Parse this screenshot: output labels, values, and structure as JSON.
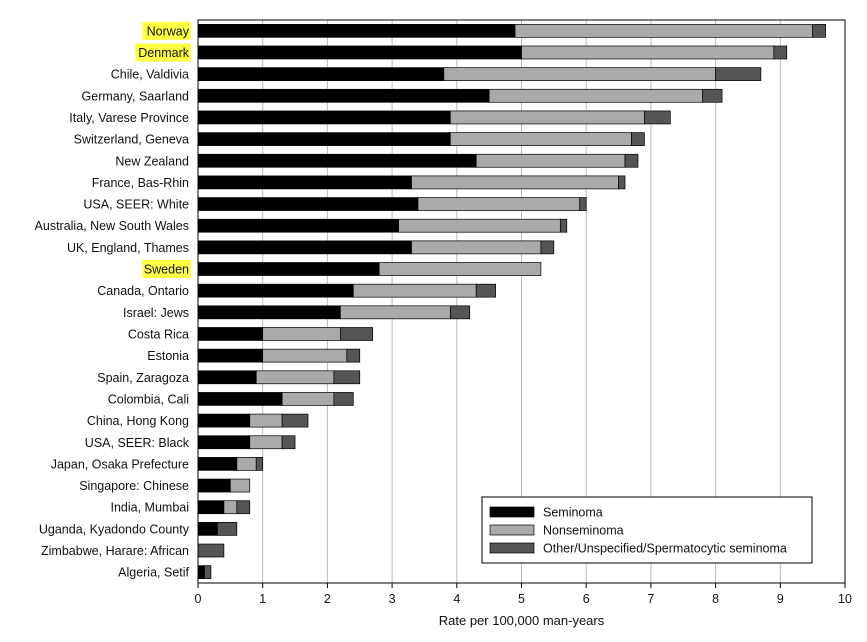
{
  "chart_data": {
    "type": "bar",
    "orientation": "horizontal",
    "stacked": true,
    "categories": [
      "Norway",
      "Denmark",
      "Chile, Valdivia",
      "Germany, Saarland",
      "Italy, Varese Province",
      "Switzerland, Geneva",
      "New Zealand",
      "France, Bas-Rhin",
      "USA, SEER: White",
      "Australia, New South Wales",
      "UK, England, Thames",
      "Sweden",
      "Canada, Ontario",
      "Israel: Jews",
      "Costa Rica",
      "Estonia",
      "Spain, Zaragoza",
      "Colombia, Cali",
      "China, Hong Kong",
      "USA, SEER: Black",
      "Japan, Osaka Prefecture",
      "Singapore: Chinese",
      "India, Mumbai",
      "Uganda, Kyadondo County",
      "Zimbabwe, Harare: African",
      "Algeria, Setif"
    ],
    "highlighted_categories": [
      "Norway",
      "Denmark",
      "Sweden"
    ],
    "highlight_color": "#ffff44",
    "series": [
      {
        "name": "Seminoma",
        "color": "#000000",
        "values": [
          4.9,
          5.0,
          3.8,
          4.5,
          3.9,
          3.9,
          4.3,
          3.3,
          3.4,
          3.1,
          3.3,
          2.8,
          2.4,
          2.2,
          1.0,
          1.0,
          0.9,
          1.3,
          0.8,
          0.8,
          0.6,
          0.5,
          0.4,
          0.3,
          0.0,
          0.1
        ]
      },
      {
        "name": "Nonseminoma",
        "color": "#aaaaaa",
        "values": [
          4.6,
          3.9,
          4.2,
          3.3,
          3.0,
          2.8,
          2.3,
          3.2,
          2.5,
          2.5,
          2.0,
          2.5,
          1.9,
          1.7,
          1.2,
          1.3,
          1.2,
          0.8,
          0.5,
          0.5,
          0.3,
          0.3,
          0.2,
          0.0,
          0.0,
          0.0
        ]
      },
      {
        "name": "Other/Unspecified/Spermatocytic seminoma",
        "color": "#555555",
        "values": [
          0.2,
          0.2,
          0.7,
          0.3,
          0.4,
          0.2,
          0.2,
          0.1,
          0.1,
          0.1,
          0.2,
          0.0,
          0.3,
          0.3,
          0.5,
          0.2,
          0.4,
          0.3,
          0.4,
          0.2,
          0.1,
          0.0,
          0.2,
          0.3,
          0.4,
          0.1
        ]
      }
    ],
    "xlabel": "Rate per 100,000 man-years",
    "xlim": [
      0,
      10
    ],
    "xticks": [
      0,
      1,
      2,
      3,
      4,
      5,
      6,
      7,
      8,
      9,
      10
    ],
    "grid": "vertical",
    "legend_position": "bottom-right"
  }
}
